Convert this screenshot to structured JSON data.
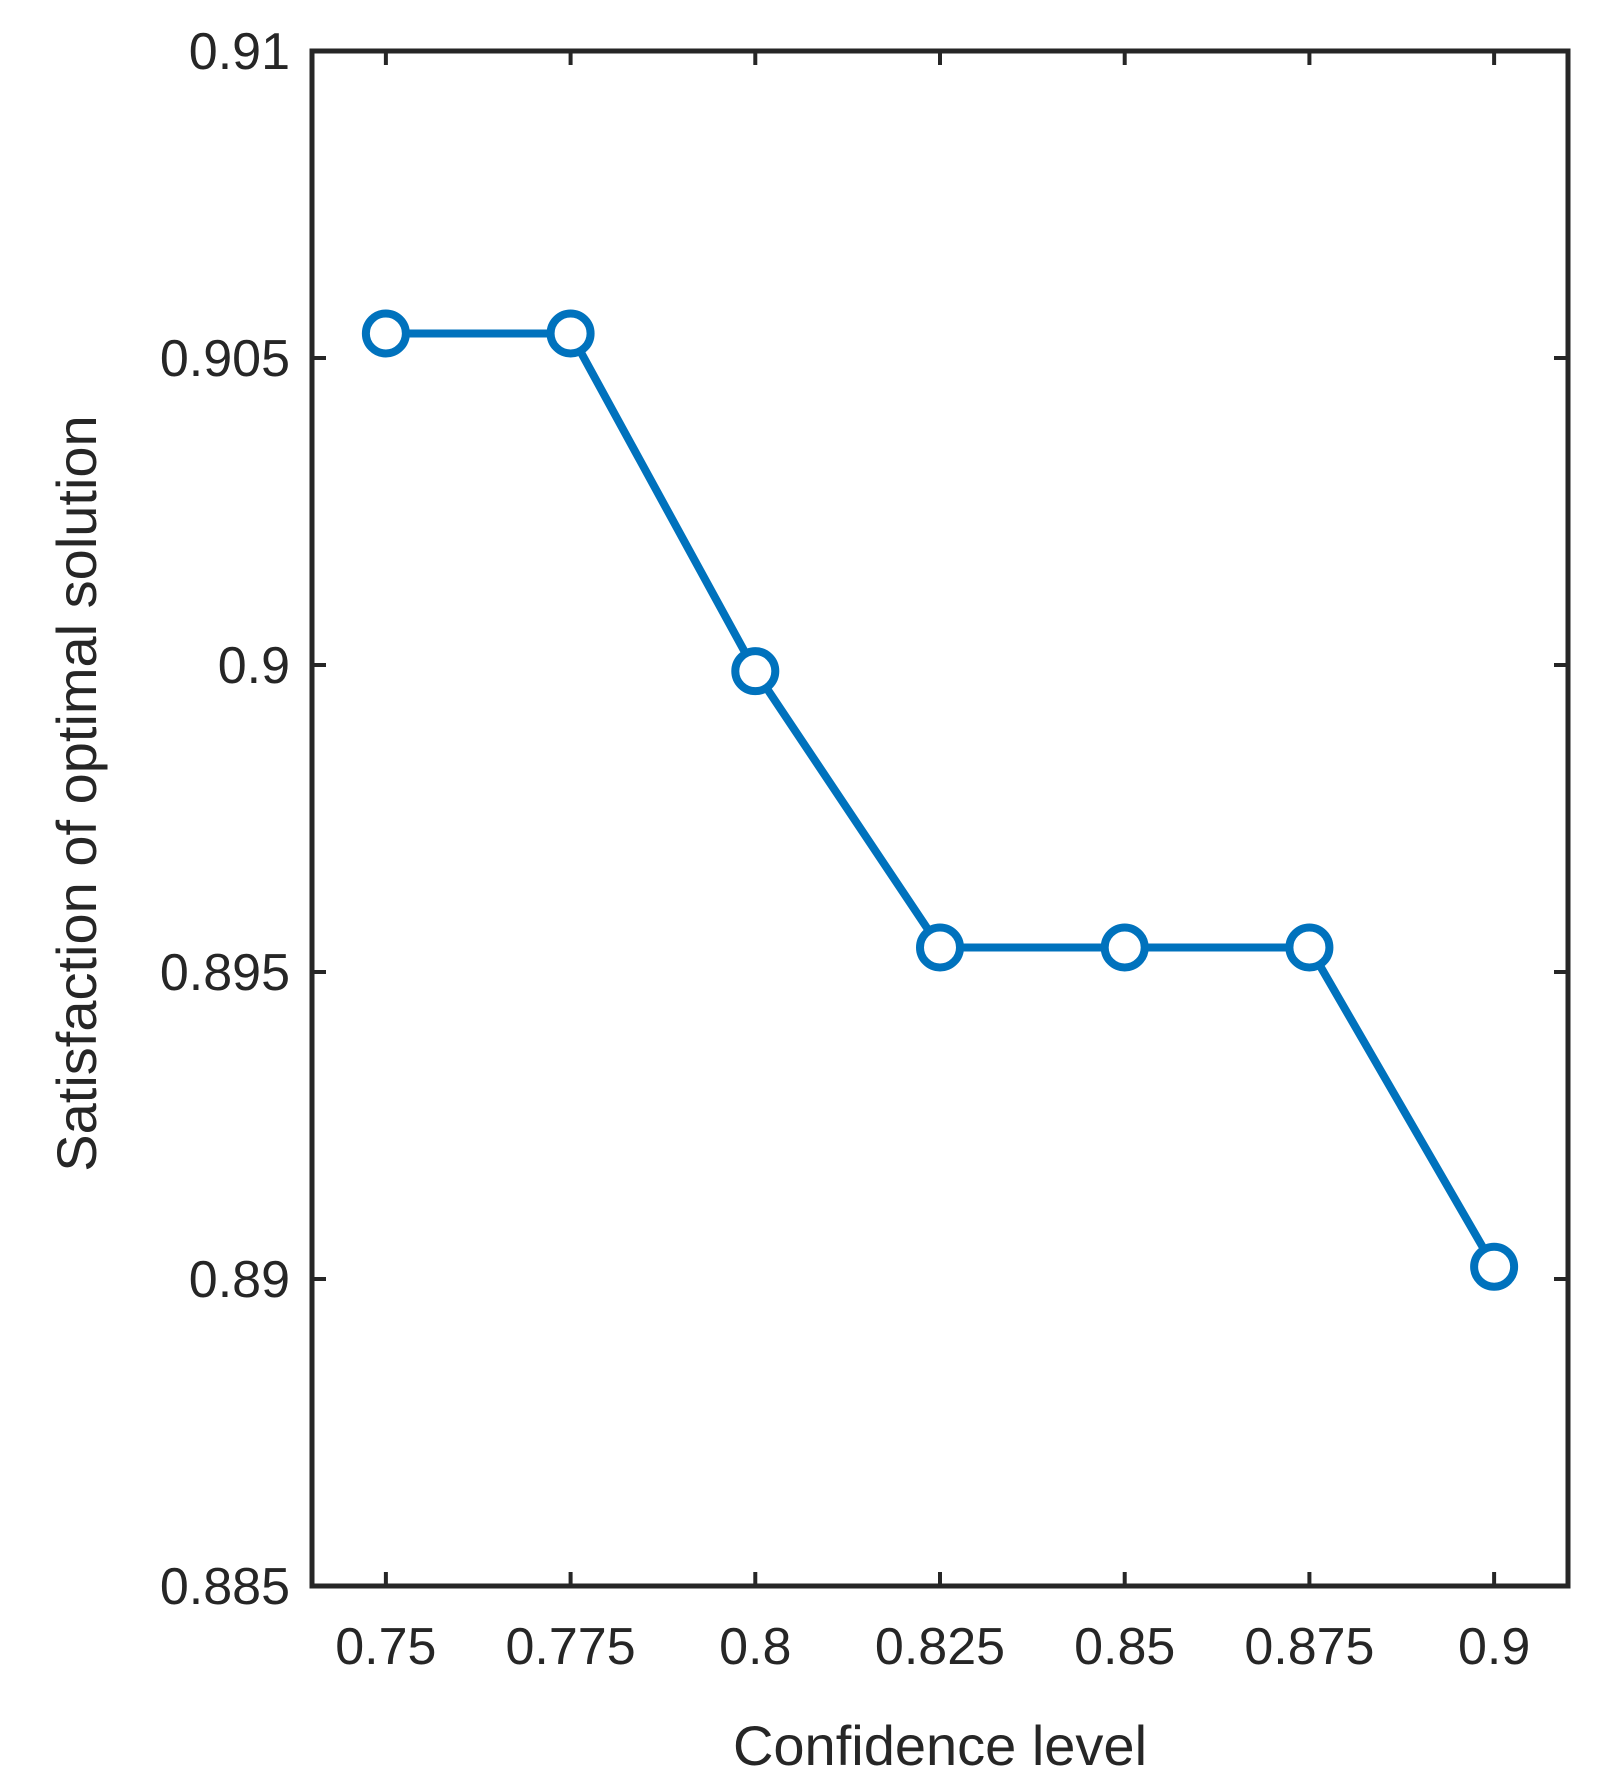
{
  "chart_data": {
    "type": "line",
    "title": "",
    "xlabel": "Confidence level",
    "ylabel": "Satisfaction of optimal solution",
    "x": [
      0.75,
      0.775,
      0.8,
      0.825,
      0.85,
      0.875,
      0.9
    ],
    "xticks": [
      "0.75",
      "0.775",
      "0.8",
      "0.825",
      "0.85",
      "0.875",
      "0.9"
    ],
    "yticks": [
      "0.885",
      "0.89",
      "0.895",
      "0.9",
      "0.905",
      "0.91"
    ],
    "xlim": [
      0.74,
      0.91
    ],
    "ylim": [
      0.885,
      0.91
    ],
    "series": [
      {
        "values": [
          0.9054,
          0.9054,
          0.8999,
          0.8954,
          0.8954,
          0.8954,
          0.8902
        ],
        "color": "#0072BD",
        "marker": "circle-open"
      }
    ],
    "grid": false,
    "legend": "none"
  }
}
